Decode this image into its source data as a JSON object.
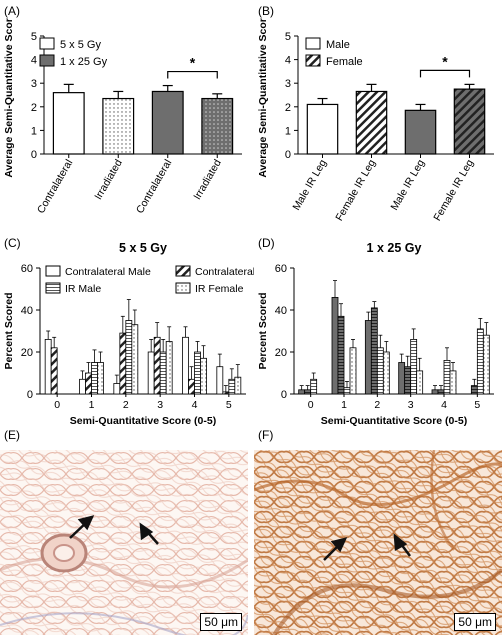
{
  "panels": {
    "a": "(A)",
    "b": "(B)",
    "c": "(C)",
    "d": "(D)",
    "e": "(E)",
    "f": "(F)"
  },
  "scale_bar": "50 μm",
  "colors": {
    "dark_bar": "#6e6e6e",
    "tissue_pink": "#f3dcd6",
    "tissue_brown": "#b9692e",
    "tissue_cream": "#fdf7f3"
  },
  "chart_data": [
    {
      "id": "A",
      "type": "bar",
      "ylabel": "Average Semi-Quantitative Score",
      "ylim": [
        0,
        5
      ],
      "yticks": [
        "0",
        "1",
        "2",
        "3",
        "4",
        "5"
      ],
      "categories": [
        "Contralateral",
        "Irradiated",
        "Contralateral",
        "Irradiated"
      ],
      "values": [
        2.6,
        2.35,
        2.65,
        2.35
      ],
      "errors": [
        0.35,
        0.3,
        0.25,
        0.2
      ],
      "styles": [
        "white",
        "dots",
        "gray",
        "gray-dots"
      ],
      "legend": [
        {
          "name": "5 x 5 Gy",
          "style": "white"
        },
        {
          "name": "1 x 25 Gy",
          "style": "gray"
        }
      ],
      "significance": "*"
    },
    {
      "id": "B",
      "type": "bar",
      "ylabel": "Average Semi-Quantitative Score",
      "ylim": [
        0,
        5
      ],
      "yticks": [
        "0",
        "1",
        "2",
        "3",
        "4",
        "5"
      ],
      "categories": [
        "Male IR Leg",
        "Female IR Leg",
        "Male IR Leg",
        "Female IR Leg"
      ],
      "values": [
        2.1,
        2.65,
        1.85,
        2.75
      ],
      "errors": [
        0.25,
        0.3,
        0.25,
        0.2
      ],
      "styles": [
        "white",
        "hatch",
        "gray",
        "gray-hatch"
      ],
      "legend": [
        {
          "name": "Male",
          "style": "white"
        },
        {
          "name": "Female",
          "style": "hatch"
        }
      ],
      "significance": "*"
    },
    {
      "id": "C",
      "type": "bar",
      "title": "5 x 5 Gy",
      "xlabel": "Semi-Quantitative Score (0-5)",
      "ylabel": "Percent Scored",
      "ylim": [
        0,
        60
      ],
      "yticks": [
        "0",
        "20",
        "40",
        "60"
      ],
      "categories": [
        "0",
        "1",
        "2",
        "3",
        "4",
        "5"
      ],
      "series": [
        {
          "name": "Contralateral Male",
          "style": "white",
          "values": [
            26,
            7,
            5,
            20,
            27,
            13
          ],
          "errors": [
            4,
            4,
            4,
            6,
            5,
            6
          ]
        },
        {
          "name": "Contralateral Female",
          "style": "hatch",
          "values": [
            22,
            10,
            29,
            27,
            7,
            1
          ],
          "errors": [
            5,
            5,
            8,
            7,
            6,
            3
          ]
        },
        {
          "name": "IR Male",
          "style": "lines",
          "values": [
            0,
            15,
            35,
            20,
            20,
            7
          ],
          "errors": [
            0,
            6,
            10,
            6,
            5,
            5
          ]
        },
        {
          "name": "IR Female",
          "style": "dots",
          "values": [
            0,
            15,
            33,
            25,
            17,
            8
          ],
          "errors": [
            0,
            5,
            7,
            7,
            6,
            6
          ]
        }
      ]
    },
    {
      "id": "D",
      "type": "bar",
      "title": "1 x 25 Gy",
      "xlabel": "Semi-Quantitative Score (0-5)",
      "ylabel": "Percent Scored",
      "ylim": [
        0,
        60
      ],
      "yticks": [
        "0",
        "20",
        "40",
        "60"
      ],
      "categories": [
        "0",
        "1",
        "2",
        "3",
        "4",
        "5"
      ],
      "series": [
        {
          "name": "Contralateral Male",
          "style": "gray-plain",
          "values": [
            2,
            46,
            35,
            15,
            2,
            0
          ],
          "errors": [
            2,
            8,
            4,
            4,
            2,
            0
          ]
        },
        {
          "name": "Contralateral Female",
          "style": "gray-lines",
          "values": [
            2,
            37,
            41,
            13,
            2,
            4
          ],
          "errors": [
            2,
            6,
            3,
            5,
            2,
            3
          ]
        },
        {
          "name": "IR Male",
          "style": "lines",
          "values": [
            7,
            3,
            22,
            26,
            16,
            31
          ],
          "errors": [
            3,
            3,
            6,
            5,
            6,
            5
          ]
        },
        {
          "name": "IR Female",
          "style": "dots",
          "values": [
            0,
            22,
            20,
            11,
            11,
            28
          ],
          "errors": [
            0,
            4,
            5,
            6,
            4,
            6
          ]
        }
      ]
    }
  ]
}
